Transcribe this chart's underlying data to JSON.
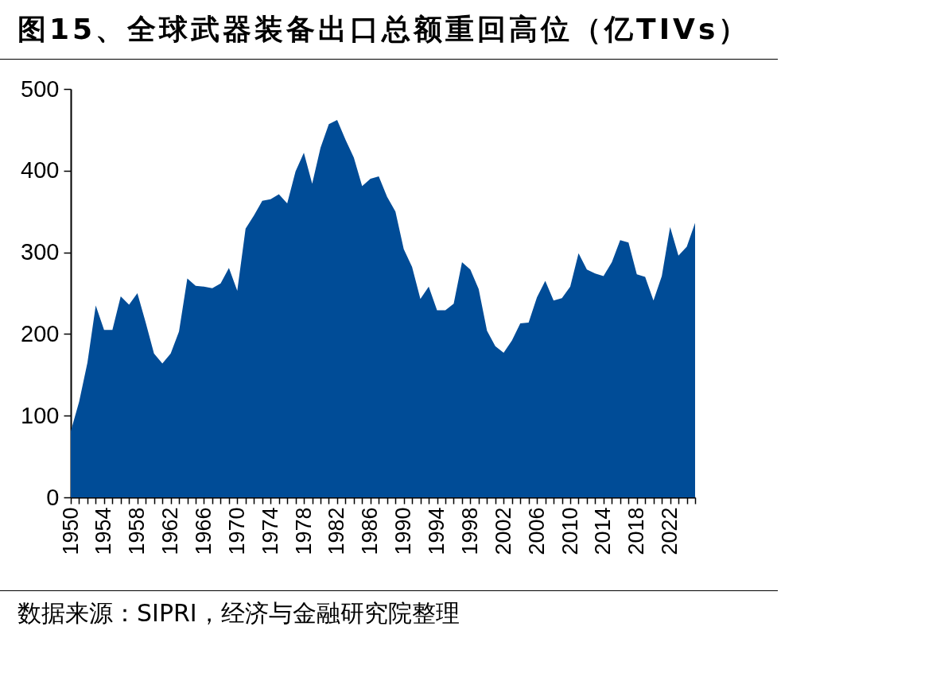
{
  "chart_data": {
    "type": "area",
    "title": "图15、全球武器装备出口总额重回高位（亿TIVs）",
    "annotations": [
      "数据来源：SIPRI，经济与金融研究院整理"
    ],
    "x": [
      1950,
      1951,
      1952,
      1953,
      1954,
      1955,
      1956,
      1957,
      1958,
      1959,
      1960,
      1961,
      1962,
      1963,
      1964,
      1965,
      1966,
      1967,
      1968,
      1969,
      1970,
      1971,
      1972,
      1973,
      1974,
      1975,
      1976,
      1977,
      1978,
      1979,
      1980,
      1981,
      1982,
      1983,
      1984,
      1985,
      1986,
      1987,
      1988,
      1989,
      1990,
      1991,
      1992,
      1993,
      1994,
      1995,
      1996,
      1997,
      1998,
      1999,
      2000,
      2001,
      2002,
      2003,
      2004,
      2005,
      2006,
      2007,
      2008,
      2009,
      2010,
      2011,
      2012,
      2013,
      2014,
      2015,
      2016,
      2017,
      2018,
      2019,
      2020,
      2021,
      2022,
      2023,
      2024,
      2025
    ],
    "values": [
      81,
      117,
      165,
      235,
      205,
      205,
      246,
      236,
      250,
      214,
      176,
      164,
      176,
      203,
      268,
      259,
      258,
      256,
      262,
      281,
      253,
      329,
      345,
      363,
      365,
      371,
      360,
      399,
      422,
      384,
      428,
      457,
      462,
      438,
      416,
      381,
      390,
      393,
      368,
      350,
      304,
      282,
      243,
      258,
      229,
      229,
      237,
      288,
      279,
      255,
      204,
      185,
      177,
      192,
      213,
      214,
      245,
      265,
      241,
      244,
      258,
      299,
      279,
      274,
      271,
      288,
      315,
      312,
      273,
      270,
      241,
      271,
      331,
      296,
      307,
      336
    ],
    "color": "#004c97",
    "xlim": [
      1950,
      2025
    ],
    "xticks": [
      1950,
      {
        "value": 1951,
        "label": null
      },
      {
        "value": 1952,
        "label": null
      },
      {
        "value": 1953,
        "label": null
      },
      1954,
      {
        "value": 1955,
        "label": null
      },
      {
        "value": 1956,
        "label": null
      },
      {
        "value": 1957,
        "label": null
      },
      1958,
      {
        "value": 1959,
        "label": null
      },
      {
        "value": 1960,
        "label": null
      },
      {
        "value": 1961,
        "label": null
      },
      1962,
      {
        "value": 1963,
        "label": null
      },
      {
        "value": 1964,
        "label": null
      },
      {
        "value": 1965,
        "label": null
      },
      1966,
      {
        "value": 1967,
        "label": null
      },
      {
        "value": 1968,
        "label": null
      },
      {
        "value": 1969,
        "label": null
      },
      1970,
      {
        "value": 1971,
        "label": null
      },
      {
        "value": 1972,
        "label": null
      },
      {
        "value": 1973,
        "label": null
      },
      1974,
      {
        "value": 1975,
        "label": null
      },
      {
        "value": 1976,
        "label": null
      },
      {
        "value": 1977,
        "label": null
      },
      1978,
      {
        "value": 1979,
        "label": null
      },
      {
        "value": 1980,
        "label": null
      },
      {
        "value": 1981,
        "label": null
      },
      1982,
      {
        "value": 1983,
        "label": null
      },
      {
        "value": 1984,
        "label": null
      },
      {
        "value": 1985,
        "label": null
      },
      1986,
      {
        "value": 1987,
        "label": null
      },
      {
        "value": 1988,
        "label": null
      },
      {
        "value": 1989,
        "label": null
      },
      1990,
      {
        "value": 1991,
        "label": null
      },
      {
        "value": 1992,
        "label": null
      },
      {
        "value": 1993,
        "label": null
      },
      1994,
      {
        "value": 1995,
        "label": null
      },
      {
        "value": 1996,
        "label": null
      },
      {
        "value": 1997,
        "label": null
      },
      1998,
      {
        "value": 1999,
        "label": null
      },
      {
        "value": 2000,
        "label": null
      },
      {
        "value": 2001,
        "label": null
      },
      2002,
      {
        "value": 2003,
        "label": null
      },
      {
        "value": 2004,
        "label": null
      },
      {
        "value": 2005,
        "label": null
      },
      2006,
      {
        "value": 2007,
        "label": null
      },
      {
        "value": 2008,
        "label": null
      },
      {
        "value": 2009,
        "label": null
      },
      2010,
      {
        "value": 2011,
        "label": null
      },
      {
        "value": 2012,
        "label": null
      },
      {
        "value": 2013,
        "label": null
      },
      2014,
      {
        "value": 2015,
        "label": null
      },
      {
        "value": 2016,
        "label": null
      },
      {
        "value": 2017,
        "label": null
      },
      2018,
      {
        "value": 2019,
        "label": null
      },
      {
        "value": 2020,
        "label": null
      },
      {
        "value": 2021,
        "label": null
      },
      2022,
      {
        "value": 2023,
        "label": null
      },
      {
        "value": 2024,
        "label": null
      },
      {
        "value": 2025,
        "label": null
      }
    ],
    "ylim": [
      0,
      500
    ],
    "yticks": [
      0,
      100,
      200,
      300,
      400,
      500
    ],
    "grid": false
  }
}
